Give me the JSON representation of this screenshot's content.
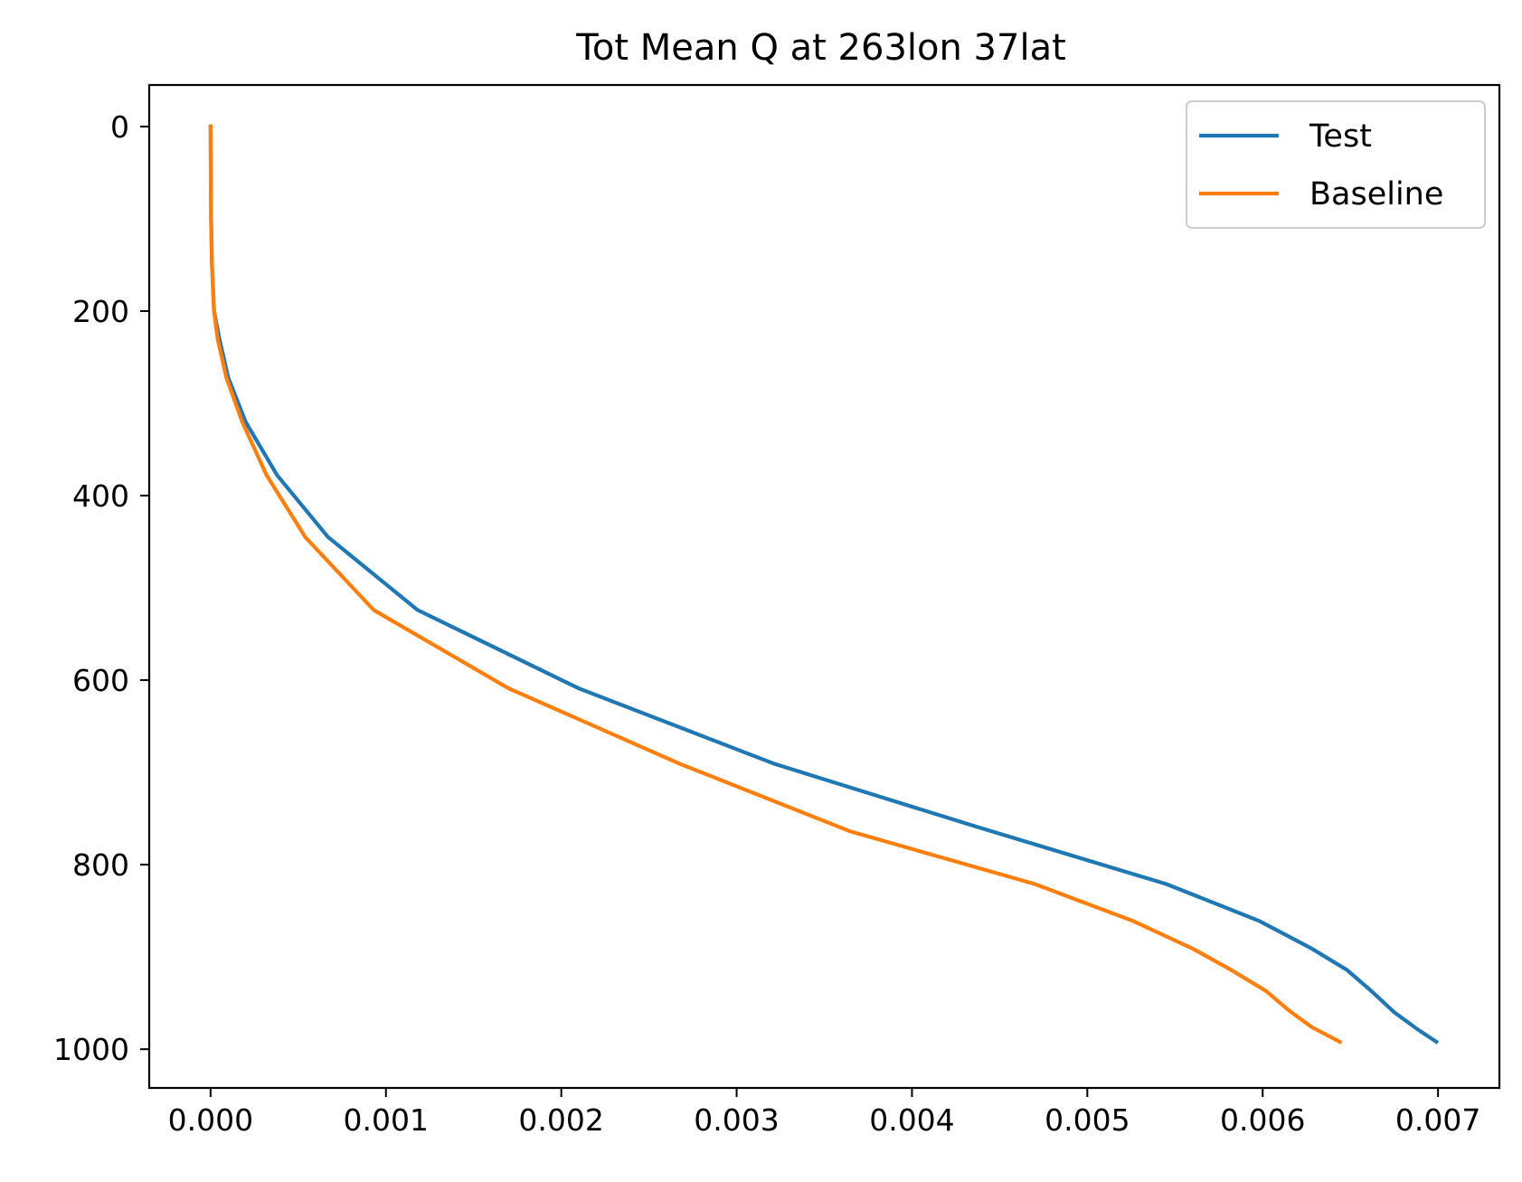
{
  "chart_data": {
    "type": "line",
    "title": "Tot Mean Q at 263lon 37lat",
    "xlabel": "",
    "ylabel": "",
    "xlim": [
      -0.00035,
      0.00735
    ],
    "ylim": [
      1042,
      -45
    ],
    "y_inverted": true,
    "xticks": [
      0.0,
      0.001,
      0.002,
      0.003,
      0.004,
      0.005,
      0.006,
      0.007
    ],
    "xtick_labels": [
      "0.000",
      "0.001",
      "0.002",
      "0.003",
      "0.004",
      "0.005",
      "0.006",
      "0.007"
    ],
    "yticks": [
      0,
      200,
      400,
      600,
      800,
      1000
    ],
    "ytick_labels": [
      "0",
      "200",
      "400",
      "600",
      "800",
      "1000"
    ],
    "grid": false,
    "legend_position": "top-right",
    "series": [
      {
        "name": "Test",
        "color": "#1f77b4",
        "x": [
          0.0,
          1e-06,
          3e-06,
          8e-06,
          2e-05,
          5e-05,
          0.0001,
          0.0002,
          0.00038,
          0.00067,
          0.00118,
          0.0021,
          0.00322,
          0.00437,
          0.00545,
          0.00598,
          0.00628,
          0.00648,
          0.00662,
          0.00675,
          0.00688,
          0.00699
        ],
        "y": [
          0,
          50,
          100,
          150,
          200,
          230,
          272,
          320,
          378,
          445,
          524,
          609,
          691,
          759,
          821,
          861,
          891,
          914,
          937,
          960,
          978,
          992
        ]
      },
      {
        "name": "Baseline",
        "color": "#ff7f0e",
        "x": [
          0.0,
          1e-06,
          3e-06,
          8e-06,
          2e-05,
          4e-05,
          9e-05,
          0.00018,
          0.00032,
          0.00054,
          0.00093,
          0.0017,
          0.00268,
          0.00365,
          0.0047,
          0.00526,
          0.0056,
          0.00582,
          0.00602,
          0.00615,
          0.00628,
          0.00644
        ],
        "y": [
          0,
          50,
          100,
          150,
          200,
          230,
          272,
          320,
          378,
          445,
          524,
          609,
          691,
          764,
          821,
          861,
          891,
          914,
          937,
          958,
          976,
          992
        ]
      }
    ]
  }
}
